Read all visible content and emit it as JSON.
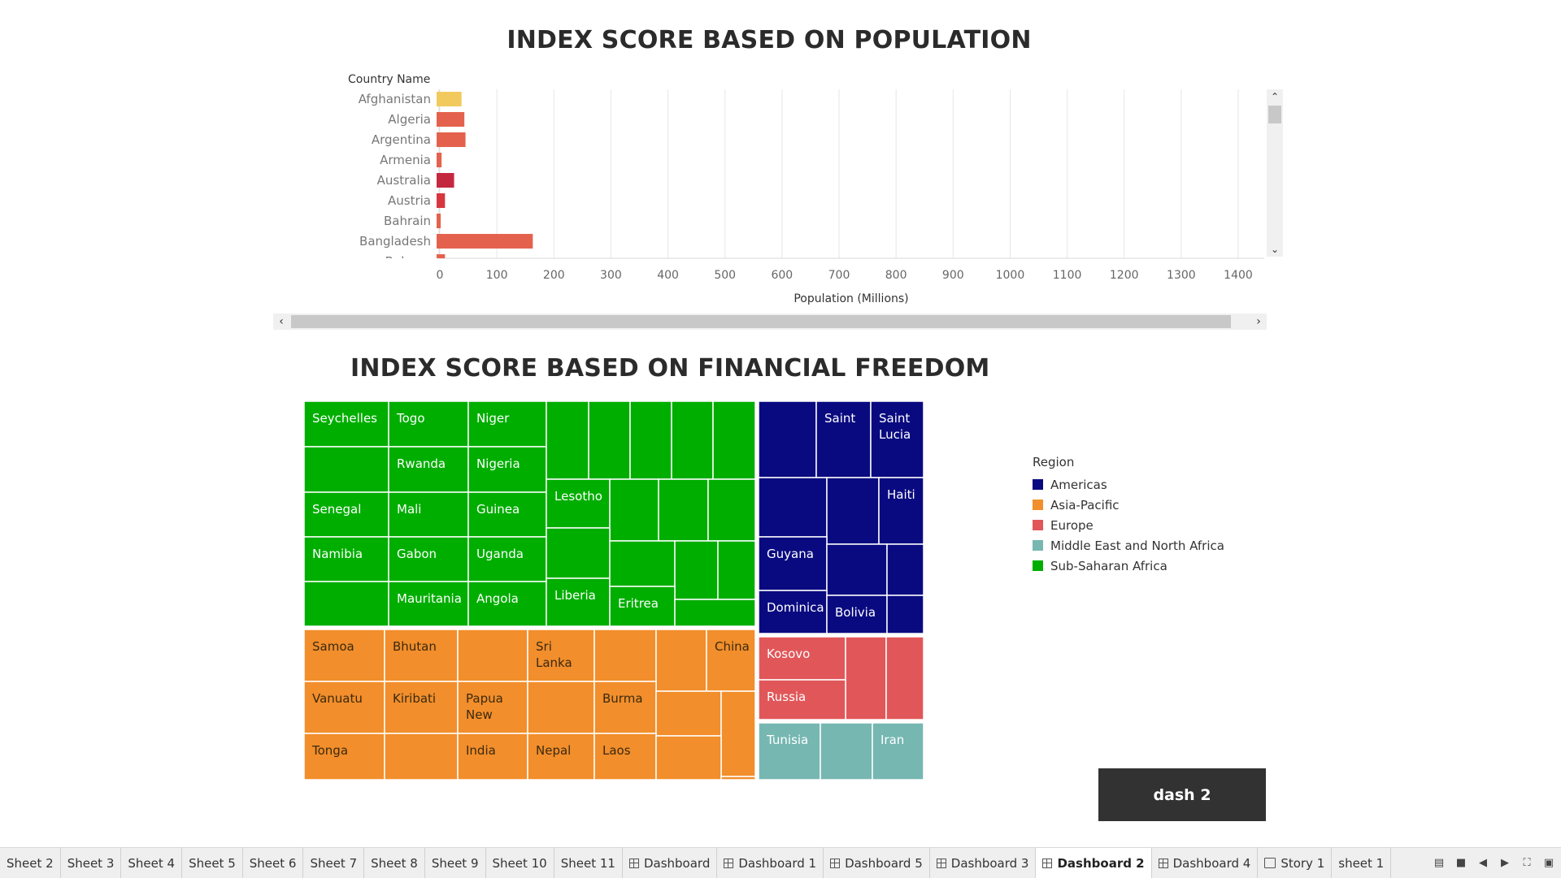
{
  "titles": {
    "population": "INDEX SCORE BASED ON POPULATION",
    "financial": "INDEX SCORE BASED ON FINANCIAL FREEDOM"
  },
  "chart_data": [
    {
      "type": "bar",
      "orientation": "horizontal",
      "title": "INDEX SCORE BASED ON POPULATION",
      "ylabel": "Country Name",
      "xlabel": "Population (Millions)",
      "categories": [
        "Afghanistan",
        "Algeria",
        "Argentina",
        "Armenia",
        "Australia",
        "Austria",
        "Bahrain",
        "Bangladesh",
        "Belarus"
      ],
      "values": [
        38,
        43,
        45,
        3,
        25,
        9,
        1.5,
        163,
        9
      ],
      "bar_colors": [
        "#f2c95c",
        "#e4624d",
        "#e4624d",
        "#e4624d",
        "#c4283f",
        "#d7363f",
        "#e4624d",
        "#e4624d",
        "#e4624d"
      ],
      "xlim": [
        0,
        1450
      ],
      "xticks": [
        0,
        100,
        200,
        300,
        400,
        500,
        600,
        700,
        800,
        900,
        1000,
        1100,
        1200,
        1300,
        1400
      ],
      "grid": true
    },
    {
      "type": "treemap",
      "title": "INDEX SCORE BASED ON FINANCIAL FREEDOM",
      "legend_title": "Region",
      "regions": [
        {
          "name": "Americas",
          "color": "#0a0a80"
        },
        {
          "name": "Asia-Pacific",
          "color": "#f28e2b"
        },
        {
          "name": "Europe",
          "color": "#e15759"
        },
        {
          "name": "Middle East and North Africa",
          "color": "#76b7b2"
        },
        {
          "name": "Sub-Saharan Africa",
          "color": "#00ae00"
        }
      ],
      "labeled_tiles": {
        "Sub-Saharan Africa": [
          "Seychelles",
          "Togo",
          "Niger",
          "Rwanda",
          "Nigeria",
          "Senegal",
          "Mali",
          "Guinea",
          "Namibia",
          "Gabon",
          "Uganda",
          "Lesotho",
          "Mauritania",
          "Angola",
          "Liberia",
          "Eritrea"
        ],
        "Asia-Pacific": [
          "Samoa",
          "Bhutan",
          "Sri Lanka",
          "China",
          "Vanuatu",
          "Kiribati",
          "Papua New",
          "Burma",
          "Tonga",
          "India",
          "Nepal",
          "Laos"
        ],
        "Americas": [
          "Saint",
          "Saint Lucia",
          "Haiti",
          "Guyana",
          "Dominica",
          "Bolivia"
        ],
        "Europe": [
          "Kosovo",
          "Russia"
        ],
        "Middle East and North Africa": [
          "Tunisia",
          "Iran"
        ]
      }
    }
  ],
  "legend": {
    "title": "Region",
    "items": [
      {
        "label": "Americas",
        "color": "#0a0a80"
      },
      {
        "label": "Asia-Pacific",
        "color": "#f28e2b"
      },
      {
        "label": "Europe",
        "color": "#e15759"
      },
      {
        "label": "Middle East and North Africa",
        "color": "#76b7b2"
      },
      {
        "label": "Sub-Saharan Africa",
        "color": "#00ae00"
      }
    ]
  },
  "dash_button": "dash 2",
  "tabs": [
    {
      "label": "Sheet 2",
      "kind": "sheet"
    },
    {
      "label": "Sheet 3",
      "kind": "sheet"
    },
    {
      "label": "Sheet 4",
      "kind": "sheet"
    },
    {
      "label": "Sheet 5",
      "kind": "sheet"
    },
    {
      "label": "Sheet 6",
      "kind": "sheet"
    },
    {
      "label": "Sheet 7",
      "kind": "sheet"
    },
    {
      "label": "Sheet 8",
      "kind": "sheet"
    },
    {
      "label": "Sheet 9",
      "kind": "sheet"
    },
    {
      "label": "Sheet 10",
      "kind": "sheet"
    },
    {
      "label": "Sheet 11",
      "kind": "sheet"
    },
    {
      "label": "Dashboard",
      "kind": "dashboard"
    },
    {
      "label": "Dashboard 1",
      "kind": "dashboard"
    },
    {
      "label": "Dashboard 5",
      "kind": "dashboard"
    },
    {
      "label": "Dashboard 3",
      "kind": "dashboard"
    },
    {
      "label": "Dashboard 2",
      "kind": "dashboard",
      "active": true
    },
    {
      "label": "Dashboard 4",
      "kind": "dashboard"
    },
    {
      "label": "Story 1",
      "kind": "story"
    },
    {
      "label": "sheet 1",
      "kind": "sheet"
    }
  ],
  "toolbar_icons": [
    "filmstrip-icon",
    "tiles-icon",
    "prev-sheet-icon",
    "next-sheet-icon",
    "fullscreen-icon",
    "presentation-icon"
  ]
}
